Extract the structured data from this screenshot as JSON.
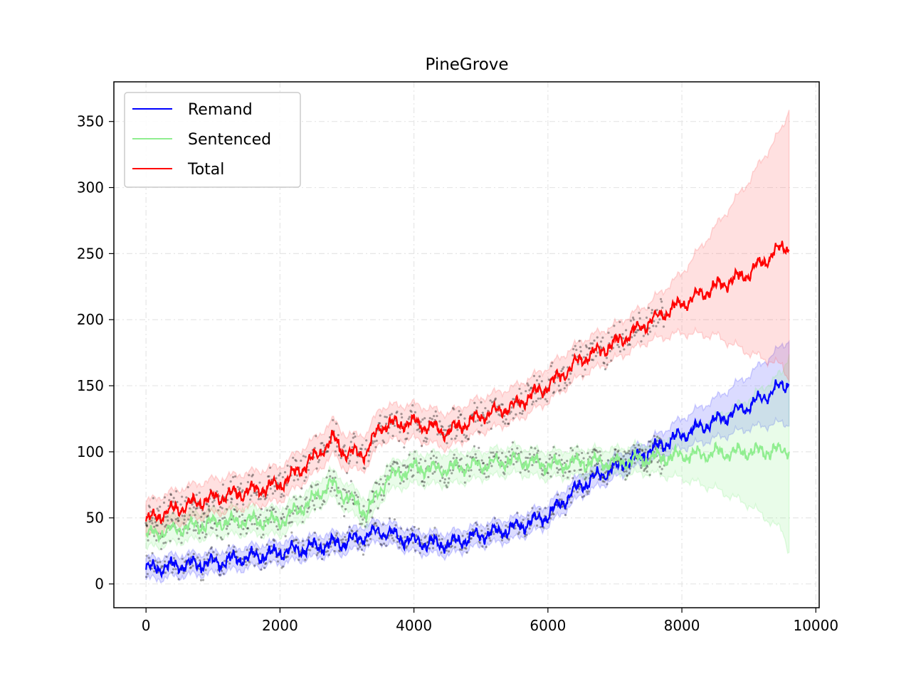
{
  "chart_data": {
    "type": "line",
    "title": "PineGrove",
    "xlabel": "",
    "ylabel": "",
    "xlim": [
      -480,
      10050
    ],
    "ylim": [
      -18,
      380
    ],
    "x_ticks": [
      0,
      2000,
      4000,
      6000,
      8000,
      10000
    ],
    "x_tick_labels": [
      "0",
      "2000",
      "4000",
      "6000",
      "8000",
      "10000"
    ],
    "y_ticks": [
      0,
      50,
      100,
      150,
      200,
      250,
      300,
      350
    ],
    "y_tick_labels": [
      "0",
      "50",
      "100",
      "150",
      "200",
      "250",
      "300",
      "350"
    ],
    "grid": true,
    "legend_position": "upper left",
    "observed_points_until_x": 7750,
    "series": [
      {
        "name": "Remand",
        "color": "#0000ff",
        "band_color": "#4c4cff",
        "x": [
          0,
          500,
          1000,
          1500,
          2000,
          2500,
          3000,
          3500,
          4000,
          4500,
          5000,
          5500,
          6000,
          6500,
          7000,
          7500,
          8000,
          8500,
          9000,
          9500,
          9600
        ],
        "values": [
          11,
          14,
          16,
          20,
          24,
          28,
          32,
          40,
          32,
          30,
          37,
          42,
          52,
          75,
          88,
          100,
          113,
          123,
          135,
          150,
          152
        ],
        "band_lower": [
          3,
          6,
          8,
          12,
          16,
          20,
          24,
          32,
          24,
          22,
          29,
          34,
          44,
          67,
          80,
          93,
          103,
          110,
          118,
          122,
          121
        ],
        "band_upper": [
          19,
          22,
          24,
          28,
          32,
          36,
          40,
          48,
          40,
          38,
          45,
          50,
          60,
          83,
          96,
          108,
          125,
          140,
          158,
          180,
          185
        ]
      },
      {
        "name": "Sentenced",
        "color": "#90ee90",
        "band_color": "#90ee90",
        "x": [
          0,
          500,
          1000,
          1500,
          2000,
          2500,
          2750,
          3000,
          3300,
          3600,
          4000,
          4500,
          5000,
          5500,
          6000,
          6500,
          7000,
          7500,
          8000,
          8500,
          9000,
          9500,
          9600
        ],
        "values": [
          37,
          42,
          46,
          48,
          47,
          64,
          76,
          66,
          54,
          80,
          88,
          87,
          90,
          94,
          90,
          92,
          92,
          95,
          97,
          99,
          100,
          101,
          102
        ],
        "band_lower": [
          27,
          32,
          36,
          38,
          37,
          54,
          66,
          56,
          44,
          70,
          76,
          75,
          80,
          84,
          80,
          82,
          82,
          84,
          80,
          72,
          60,
          40,
          25
        ],
        "band_upper": [
          47,
          52,
          56,
          58,
          57,
          74,
          86,
          76,
          64,
          90,
          98,
          99,
          100,
          104,
          100,
          102,
          102,
          106,
          114,
          126,
          140,
          160,
          175
        ]
      },
      {
        "name": "Total",
        "color": "#ff0000",
        "band_color": "#ff6666",
        "x": [
          0,
          500,
          1000,
          1500,
          2000,
          2500,
          2800,
          3000,
          3300,
          3500,
          4000,
          4500,
          5000,
          5500,
          6000,
          6500,
          7000,
          7500,
          8000,
          8500,
          9000,
          9500,
          9600
        ],
        "values": [
          48,
          58,
          65,
          70,
          75,
          95,
          110,
          98,
          100,
          120,
          122,
          115,
          127,
          135,
          150,
          170,
          182,
          198,
          212,
          225,
          235,
          255,
          255
        ],
        "band_lower": [
          36,
          46,
          53,
          58,
          63,
          83,
          98,
          86,
          88,
          108,
          110,
          103,
          115,
          123,
          138,
          158,
          170,
          184,
          190,
          188,
          175,
          165,
          155
        ],
        "band_upper": [
          62,
          72,
          79,
          84,
          89,
          109,
          124,
          112,
          114,
          134,
          136,
          129,
          141,
          149,
          164,
          184,
          196,
          212,
          235,
          270,
          305,
          345,
          360
        ]
      }
    ]
  }
}
